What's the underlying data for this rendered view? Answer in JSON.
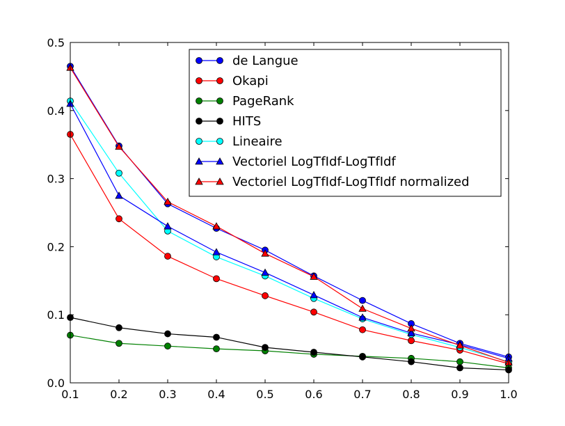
{
  "chart_data": {
    "type": "line",
    "x": [
      0.1,
      0.2,
      0.3,
      0.4,
      0.5,
      0.6,
      0.7,
      0.8,
      0.9,
      1.0
    ],
    "xlim": [
      0.1,
      1.0
    ],
    "ylim": [
      0.0,
      0.5
    ],
    "xticks": [
      "0.1",
      "0.2",
      "0.3",
      "0.4",
      "0.5",
      "0.6",
      "0.7",
      "0.8",
      "0.9",
      "1.0"
    ],
    "yticks": [
      "0.0",
      "0.1",
      "0.2",
      "0.3",
      "0.4",
      "0.5"
    ],
    "xtick_values": [
      0.1,
      0.2,
      0.3,
      0.4,
      0.5,
      0.6,
      0.7,
      0.8,
      0.9,
      1.0
    ],
    "ytick_values": [
      0.0,
      0.1,
      0.2,
      0.3,
      0.4,
      0.5
    ],
    "grid": false,
    "legend_position": "top-right",
    "series": [
      {
        "name": "de Langue",
        "color": "#0000ff",
        "marker": "circle",
        "values": [
          0.465,
          0.348,
          0.263,
          0.227,
          0.195,
          0.157,
          0.121,
          0.087,
          0.058,
          0.038
        ]
      },
      {
        "name": "Okapi",
        "color": "#ff0000",
        "marker": "circle",
        "values": [
          0.365,
          0.241,
          0.186,
          0.153,
          0.128,
          0.104,
          0.078,
          0.062,
          0.048,
          0.028
        ]
      },
      {
        "name": "PageRank",
        "color": "#008000",
        "marker": "circle",
        "values": [
          0.07,
          0.058,
          0.054,
          0.05,
          0.047,
          0.042,
          0.039,
          0.036,
          0.031,
          0.022
        ]
      },
      {
        "name": "HITS",
        "color": "#000000",
        "marker": "circle",
        "values": [
          0.096,
          0.081,
          0.072,
          0.067,
          0.052,
          0.045,
          0.038,
          0.031,
          0.022,
          0.019
        ]
      },
      {
        "name": "Lineaire",
        "color": "#00ffff",
        "marker": "circle",
        "values": [
          0.414,
          0.308,
          0.223,
          0.185,
          0.157,
          0.124,
          0.094,
          0.071,
          0.052,
          0.031
        ]
      },
      {
        "name": "Vectoriel LogTfIdf-LogTfIdf",
        "color": "#0000ff",
        "marker": "triangle",
        "values": [
          0.41,
          0.275,
          0.23,
          0.192,
          0.162,
          0.129,
          0.096,
          0.073,
          0.056,
          0.036
        ]
      },
      {
        "name": "Vectoriel LogTfIdf-LogTfIdf normalized",
        "color": "#ff0000",
        "marker": "triangle",
        "values": [
          0.463,
          0.347,
          0.266,
          0.23,
          0.19,
          0.156,
          0.109,
          0.08,
          0.055,
          0.03
        ]
      }
    ]
  }
}
